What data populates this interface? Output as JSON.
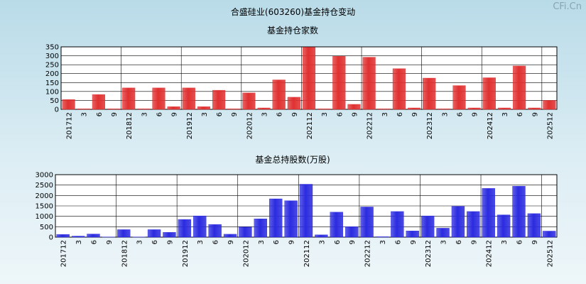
{
  "page_title": "合盛硅业(603260)基金持仓变动",
  "watermark": "CFi.Cn",
  "colors": {
    "bar_red": "#e03030",
    "bar_blue": "#2b2be0",
    "plot_bg": "#ffffff",
    "grid": "#000000"
  },
  "chart_data": [
    {
      "type": "bar",
      "title": "基金持仓家数",
      "x_tick_labels": [
        "201712",
        "3",
        "6",
        "9",
        "201812",
        "3",
        "6",
        "9",
        "201912",
        "3",
        "6",
        "9",
        "202012",
        "3",
        "6",
        "9",
        "202112",
        "3",
        "6",
        "9",
        "202212",
        "3",
        "6",
        "9",
        "202312",
        "3",
        "6",
        "9",
        "202412",
        "3",
        "6",
        "9",
        "202512"
      ],
      "values": [
        55,
        3,
        83,
        3,
        120,
        3,
        120,
        15,
        120,
        15,
        107,
        3,
        92,
        8,
        165,
        68,
        348,
        3,
        297,
        28,
        292,
        3,
        228,
        8,
        175,
        3,
        133,
        8,
        177,
        8,
        243,
        8,
        50
      ],
      "ylim": [
        0,
        350
      ],
      "yticks": [
        0,
        50,
        100,
        150,
        200,
        250,
        300,
        350
      ]
    },
    {
      "type": "bar",
      "title": "基金总持股数(万股)",
      "x_tick_labels": [
        "201712",
        "3",
        "6",
        "9",
        "201812",
        "3",
        "6",
        "9",
        "201912",
        "3",
        "6",
        "9",
        "202012",
        "3",
        "6",
        "9",
        "202112",
        "3",
        "6",
        "9",
        "202212",
        "3",
        "6",
        "9",
        "202312",
        "3",
        "6",
        "9",
        "202412",
        "3",
        "6",
        "9",
        "202512"
      ],
      "values": [
        130,
        50,
        150,
        10,
        360,
        10,
        360,
        230,
        850,
        1020,
        610,
        140,
        490,
        880,
        1840,
        1750,
        2540,
        110,
        1200,
        500,
        1450,
        20,
        1230,
        300,
        1020,
        430,
        1480,
        1230,
        2340,
        1070,
        2450,
        1130,
        290
      ],
      "ylim": [
        0,
        3000
      ],
      "yticks": [
        0,
        500,
        1000,
        1500,
        2000,
        2500,
        3000
      ]
    }
  ]
}
